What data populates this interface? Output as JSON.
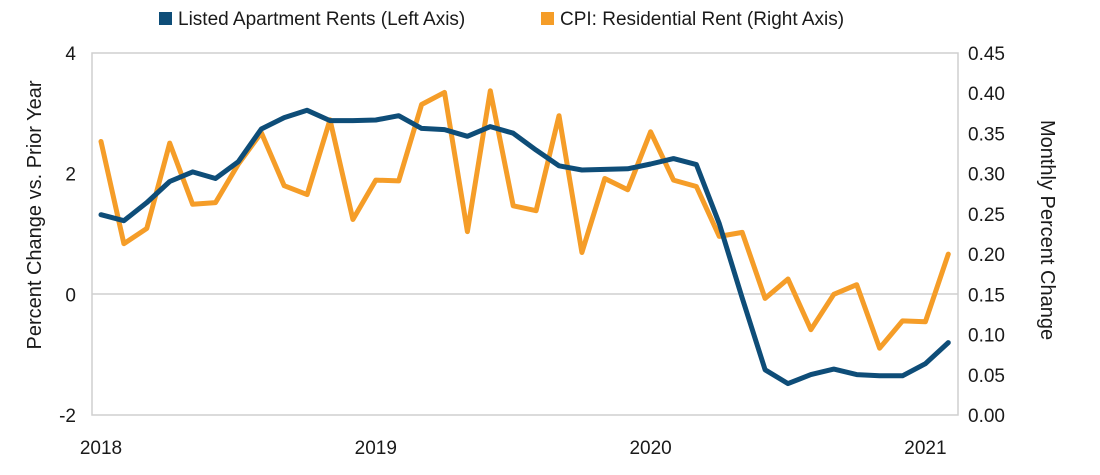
{
  "chart_data": {
    "type": "line",
    "title": "",
    "x_ticks": [
      "2018",
      "2019",
      "2020",
      "2021"
    ],
    "left_axis": {
      "label": "Percent Change vs. Prior Year",
      "range": [
        -2,
        4
      ],
      "ticks": [
        "-2",
        "0",
        "2",
        "4"
      ]
    },
    "right_axis": {
      "label": "Monthly Percent Change",
      "range": [
        0.0,
        0.45
      ],
      "ticks": [
        "0.00",
        "0.05",
        "0.10",
        "0.15",
        "0.20",
        "0.25",
        "0.30",
        "0.35",
        "0.40",
        "0.45"
      ]
    },
    "x": [
      "2018-01",
      "2018-02",
      "2018-03",
      "2018-04",
      "2018-05",
      "2018-06",
      "2018-07",
      "2018-08",
      "2018-09",
      "2018-10",
      "2018-11",
      "2018-12",
      "2019-01",
      "2019-02",
      "2019-03",
      "2019-04",
      "2019-05",
      "2019-06",
      "2019-07",
      "2019-08",
      "2019-09",
      "2019-10",
      "2019-11",
      "2019-12",
      "2020-01",
      "2020-02",
      "2020-03",
      "2020-04",
      "2020-05",
      "2020-06",
      "2020-07",
      "2020-08",
      "2020-09",
      "2020-10",
      "2020-11",
      "2020-12",
      "2021-01",
      "2021-02"
    ],
    "series": [
      {
        "name": "Listed Apartment Rents (Left Axis)",
        "axis": "left",
        "color": "#0e4d78",
        "values": [
          1.32,
          1.22,
          1.52,
          1.87,
          2.03,
          1.92,
          2.2,
          2.74,
          2.93,
          3.05,
          2.88,
          2.88,
          2.89,
          2.96,
          2.75,
          2.73,
          2.62,
          2.78,
          2.67,
          2.39,
          2.13,
          2.06,
          2.07,
          2.08,
          2.16,
          2.25,
          2.15,
          1.17,
          -0.06,
          -1.25,
          -1.48,
          -1.33,
          -1.24,
          -1.33,
          -1.35,
          -1.35,
          -1.15,
          -0.8
        ]
      },
      {
        "name": "CPI: Residential Rent (Right Axis)",
        "axis": "right",
        "color": "#f59d28",
        "values": [
          0.34,
          0.213,
          0.232,
          0.338,
          0.262,
          0.264,
          0.312,
          0.351,
          0.285,
          0.274,
          0.367,
          0.243,
          0.292,
          0.291,
          0.386,
          0.401,
          0.228,
          0.403,
          0.26,
          0.254,
          0.372,
          0.202,
          0.294,
          0.28,
          0.352,
          0.292,
          0.284,
          0.222,
          0.227,
          0.145,
          0.169,
          0.106,
          0.15,
          0.162,
          0.083,
          0.117,
          0.116,
          0.2
        ]
      }
    ],
    "grid": false,
    "legend_position": "top"
  }
}
